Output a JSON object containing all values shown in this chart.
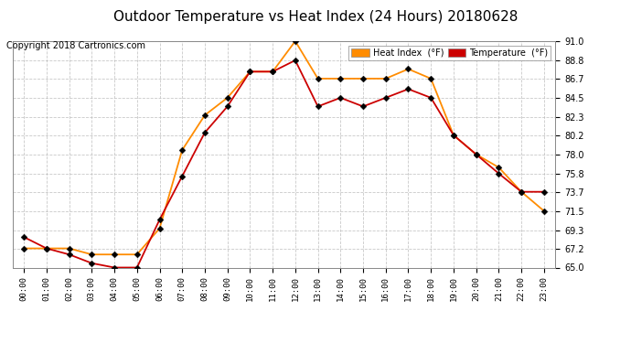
{
  "title": "Outdoor Temperature vs Heat Index (24 Hours) 20180628",
  "copyright": "Copyright 2018 Cartronics.com",
  "hours": [
    "00:00",
    "01:00",
    "02:00",
    "03:00",
    "04:00",
    "05:00",
    "06:00",
    "07:00",
    "08:00",
    "09:00",
    "10:00",
    "11:00",
    "12:00",
    "13:00",
    "14:00",
    "15:00",
    "16:00",
    "17:00",
    "18:00",
    "19:00",
    "20:00",
    "21:00",
    "22:00",
    "23:00"
  ],
  "temperature": [
    68.5,
    67.2,
    66.5,
    65.5,
    65.0,
    65.0,
    70.5,
    75.5,
    80.5,
    83.5,
    87.5,
    87.5,
    88.8,
    83.5,
    84.5,
    83.5,
    84.5,
    85.5,
    84.5,
    80.2,
    78.0,
    75.8,
    73.7,
    73.7
  ],
  "heat_index": [
    67.2,
    67.2,
    67.2,
    66.5,
    66.5,
    66.5,
    69.5,
    78.5,
    82.5,
    84.5,
    87.5,
    87.5,
    91.0,
    86.7,
    86.7,
    86.7,
    86.7,
    87.8,
    86.7,
    80.2,
    78.0,
    76.5,
    73.7,
    71.5
  ],
  "ylim": [
    65.0,
    91.0
  ],
  "yticks": [
    65.0,
    67.2,
    69.3,
    71.5,
    73.7,
    75.8,
    78.0,
    80.2,
    82.3,
    84.5,
    86.7,
    88.8,
    91.0
  ],
  "temp_color": "#cc0000",
  "hi_color": "#ff8c00",
  "bg_color": "#ffffff",
  "grid_color": "#bbbbbb",
  "title_fontsize": 11,
  "copyright_fontsize": 7
}
